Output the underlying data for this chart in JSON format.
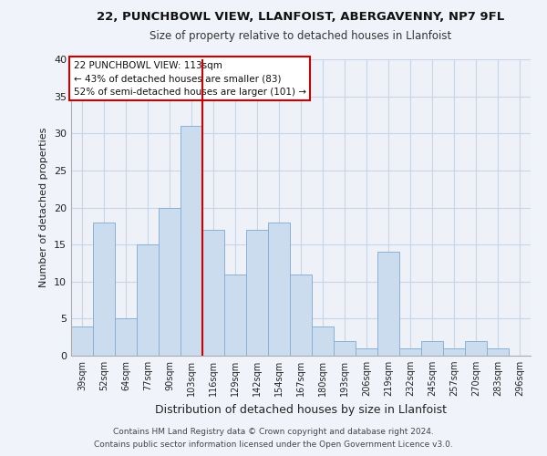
{
  "title": "22, PUNCHBOWL VIEW, LLANFOIST, ABERGAVENNY, NP7 9FL",
  "subtitle": "Size of property relative to detached houses in Llanfoist",
  "xlabel": "Distribution of detached houses by size in Llanfoist",
  "ylabel": "Number of detached properties",
  "bar_labels": [
    "39sqm",
    "52sqm",
    "64sqm",
    "77sqm",
    "90sqm",
    "103sqm",
    "116sqm",
    "129sqm",
    "142sqm",
    "154sqm",
    "167sqm",
    "180sqm",
    "193sqm",
    "206sqm",
    "219sqm",
    "232sqm",
    "245sqm",
    "257sqm",
    "270sqm",
    "283sqm",
    "296sqm"
  ],
  "bar_values": [
    4,
    18,
    5,
    15,
    20,
    31,
    17,
    11,
    17,
    18,
    11,
    4,
    2,
    1,
    14,
    1,
    2,
    1,
    2,
    1,
    0
  ],
  "bar_color": "#ccdcef",
  "bar_edge_color": "#8ab0d4",
  "vline_x_index": 6,
  "vline_color": "#cc0000",
  "ylim": [
    0,
    40
  ],
  "yticks": [
    0,
    5,
    10,
    15,
    20,
    25,
    30,
    35,
    40
  ],
  "annotation_text": "22 PUNCHBOWL VIEW: 113sqm\n← 43% of detached houses are smaller (83)\n52% of semi-detached houses are larger (101) →",
  "annotation_box_edge": "#cc0000",
  "footer_line1": "Contains HM Land Registry data © Crown copyright and database right 2024.",
  "footer_line2": "Contains public sector information licensed under the Open Government Licence v3.0.",
  "background_color": "#f0f4fa",
  "plot_background": "#eef2f8",
  "grid_color": "#c8d4e8"
}
